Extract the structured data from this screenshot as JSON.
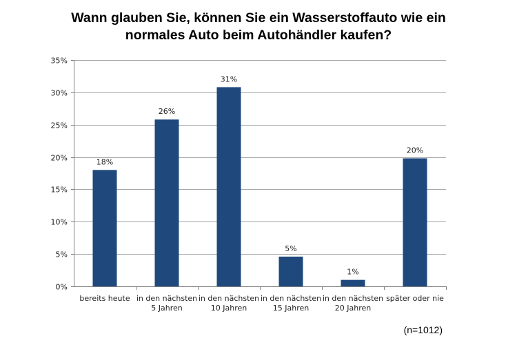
{
  "header": {
    "title_line1": "Wann glauben Sie, können Sie ein Wasserstoffauto wie ein",
    "title_line2": "normales Auto beim Autohändler kaufen?"
  },
  "footer": {
    "sample_size": "(n=1012)"
  },
  "colors": {
    "bar": "#1F497D",
    "gridline": "#A6A6A6",
    "axis": "#7F7F7F"
  },
  "chart_data": {
    "type": "bar",
    "title": "Wann glauben Sie, können Sie ein Wasserstoffauto wie ein normales Auto beim Autohändler kaufen?",
    "categories": [
      [
        "bereits heute"
      ],
      [
        "in den nächsten",
        "5 Jahren"
      ],
      [
        "in den nächsten",
        "10 Jahren"
      ],
      [
        "in den nächsten",
        "15 Jahren"
      ],
      [
        "in den nächsten",
        "20 Jahren"
      ],
      [
        "später oder nie"
      ]
    ],
    "values": [
      18,
      26,
      31,
      5,
      1,
      20
    ],
    "plotted_values": [
      18,
      25.8,
      30.8,
      4.6,
      1,
      19.8
    ],
    "data_labels": [
      "18%",
      "26%",
      "31%",
      "5%",
      "1%",
      "20%"
    ],
    "ylim": [
      0,
      35
    ],
    "yticks": [
      0,
      5,
      10,
      15,
      20,
      25,
      30,
      35
    ],
    "ytick_labels": [
      "0%",
      "5%",
      "10%",
      "15%",
      "20%",
      "25%",
      "30%",
      "35%"
    ],
    "xlabel": "",
    "ylabel": "",
    "grid": true,
    "legend": "none"
  }
}
